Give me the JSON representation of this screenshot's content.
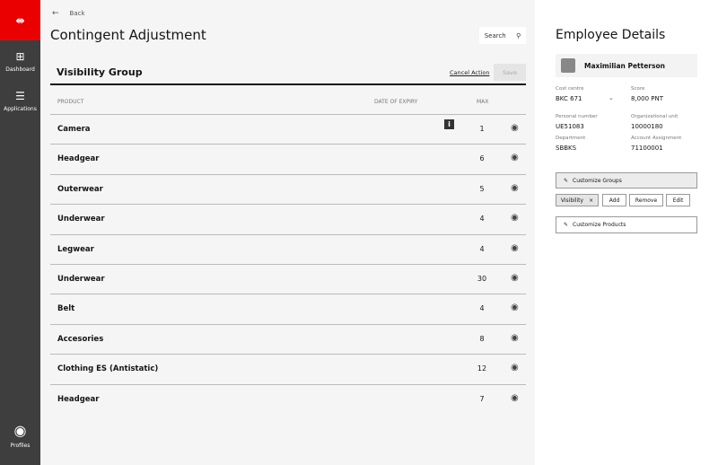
{
  "sidebar": {
    "logo": "⇼",
    "items": [
      {
        "label": "Dashboard",
        "icon": "dashboard-icon"
      },
      {
        "label": "Applications",
        "icon": "menu-icon"
      }
    ],
    "profile": {
      "label": "Profiles",
      "icon": "user-circle-icon"
    }
  },
  "header": {
    "back": "Back",
    "title": "Contingent Adjustment",
    "search": "Search"
  },
  "group": {
    "title": "Visibility Group",
    "cancel": "Cancel Action",
    "save": "Save"
  },
  "table": {
    "columns": [
      "PRODUCT",
      "DATE OF EXPIRY",
      "MAX"
    ],
    "rows": [
      {
        "product": "Camera",
        "max": "1",
        "info": true
      },
      {
        "product": "Headgear",
        "max": "6"
      },
      {
        "product": "Outerwear",
        "max": "5"
      },
      {
        "product": "Underwear",
        "max": "4"
      },
      {
        "product": "Legwear",
        "max": "4"
      },
      {
        "product": "Underwear",
        "max": "30"
      },
      {
        "product": "Belt",
        "max": "4"
      },
      {
        "product": "Accesories",
        "max": "8"
      },
      {
        "product": "Clothing ES (Antistatic)",
        "max": "12"
      },
      {
        "product": "Headgear",
        "max": "7"
      }
    ]
  },
  "details": {
    "title": "Employee Details",
    "name": "Maximilian Petterson",
    "fields": [
      {
        "label": "Cost centre",
        "value": "BKC 671"
      },
      {
        "label": "Score",
        "value": "8,000 PNT"
      },
      {
        "label": "Personal number",
        "value": "UE51083"
      },
      {
        "label": "Organizational unit",
        "value": "10000180"
      },
      {
        "label": "Department",
        "value": "SBBKS"
      },
      {
        "label": "Account Assignment",
        "value": "71100001"
      }
    ],
    "customize_groups": "Customize Groups",
    "chip": "Visibility",
    "add": "Add",
    "remove": "Remove",
    "edit": "Edit",
    "customize_products": "Customize Products"
  },
  "colors": {
    "brand": "#eb0000",
    "sidebar": "#3e3e3e"
  }
}
